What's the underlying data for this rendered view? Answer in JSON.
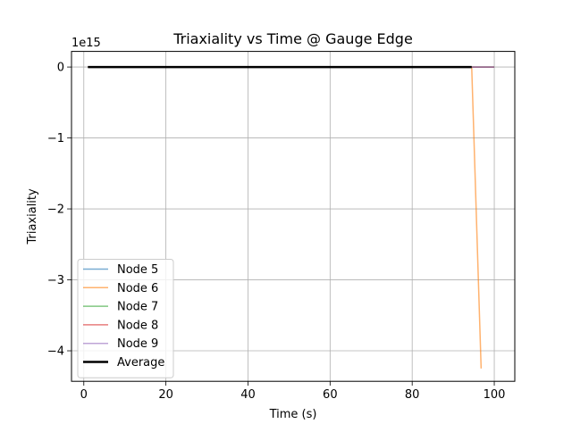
{
  "chart_data": {
    "type": "line",
    "title": "Triaxiality vs Time @ Gauge Edge",
    "xlabel": "Time (s)",
    "ylabel": "Triaxiality",
    "y_offset_text": "1e15",
    "y_scale_factor": 1000000000000000.0,
    "xlim": [
      -3,
      105
    ],
    "ylim": [
      -4.43,
      0.22
    ],
    "x_ticks": [
      0,
      20,
      40,
      60,
      80,
      100
    ],
    "x_tick_labels": [
      "0",
      "20",
      "40",
      "60",
      "80",
      "100"
    ],
    "y_ticks": [
      0,
      -1,
      -2,
      -3,
      -4
    ],
    "y_tick_labels": [
      "0",
      "−1",
      "−2",
      "−3",
      "−4"
    ],
    "grid": true,
    "legend_position": "lower-left",
    "series": [
      {
        "name": "Node 5",
        "color": "#1f77b4",
        "alpha": 0.6,
        "width": 1.5,
        "x": [
          1,
          100
        ],
        "y": [
          0,
          0
        ]
      },
      {
        "name": "Node 6",
        "color": "#ff7f0e",
        "alpha": 0.6,
        "width": 1.5,
        "x": [
          1,
          94.5,
          96.8
        ],
        "y": [
          0,
          0,
          -4.25
        ]
      },
      {
        "name": "Node 7",
        "color": "#2ca02c",
        "alpha": 0.6,
        "width": 1.5,
        "x": [
          1,
          100
        ],
        "y": [
          0,
          0
        ]
      },
      {
        "name": "Node 8",
        "color": "#d62728",
        "alpha": 0.6,
        "width": 1.5,
        "x": [
          1,
          100
        ],
        "y": [
          0,
          0
        ]
      },
      {
        "name": "Node 9",
        "color": "#9467bd",
        "alpha": 0.6,
        "width": 1.5,
        "x": [
          1,
          100
        ],
        "y": [
          0,
          0
        ]
      },
      {
        "name": "Average",
        "color": "#000000",
        "alpha": 1.0,
        "width": 2.5,
        "x": [
          1,
          94.5
        ],
        "y": [
          0,
          0
        ]
      }
    ]
  }
}
